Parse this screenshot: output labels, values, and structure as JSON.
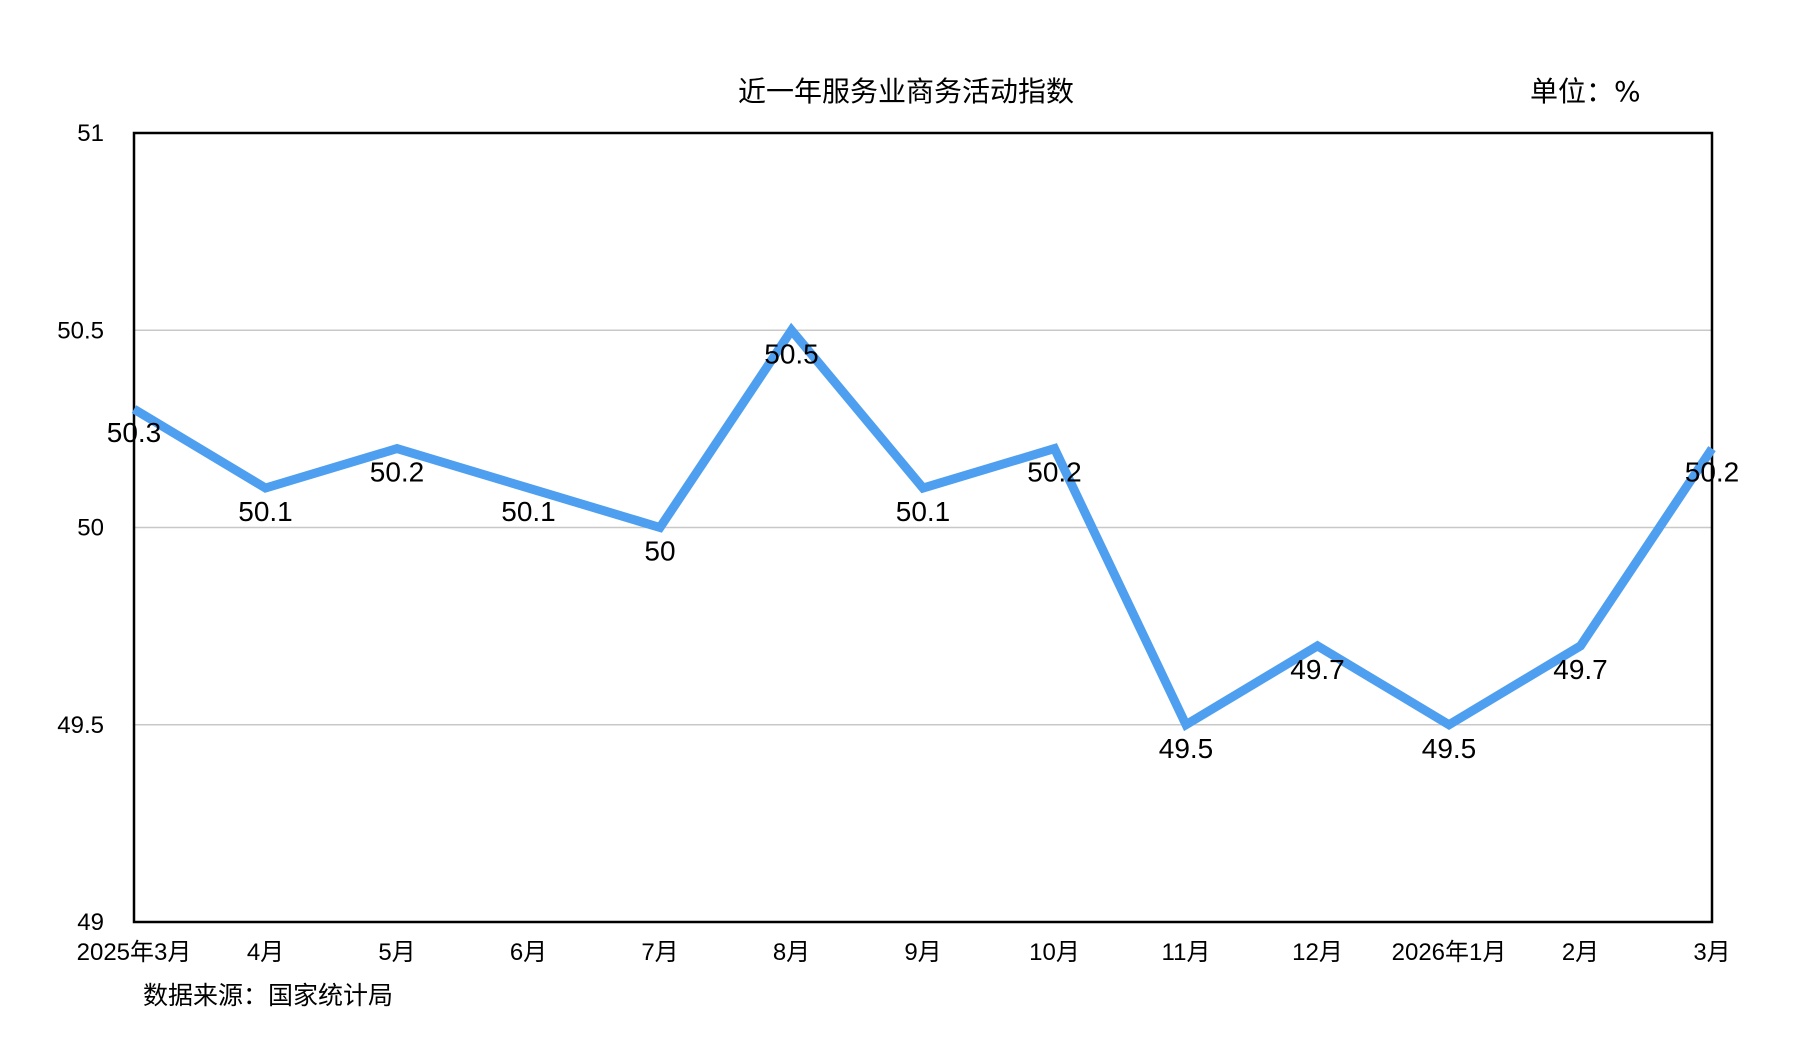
{
  "title": "近一年服务业商务活动指数",
  "unit": "单位：%",
  "source": "数据来源：国家统计局",
  "colors": {
    "line": "#4f9ff0",
    "grid": "#c8c8c8",
    "axis": "#000000"
  },
  "chart_data": {
    "type": "line",
    "title": "近一年服务业商务活动指数",
    "categories": [
      "2025年3月",
      "4月",
      "5月",
      "6月",
      "7月",
      "8月",
      "9月",
      "10月",
      "11月",
      "12月",
      "2026年1月",
      "2月",
      "3月"
    ],
    "series": [
      {
        "values": [
          50.3,
          50.1,
          50.2,
          50.1,
          50,
          50.5,
          50.1,
          50.2,
          49.5,
          49.7,
          49.5,
          49.7,
          50.2
        ]
      }
    ],
    "data_labels": [
      "50.3",
      "50.1",
      "50.2",
      "50.1",
      "50",
      "50.5",
      "50.1",
      "50.2",
      "49.5",
      "49.7",
      "49.5",
      "49.7",
      "50.2"
    ],
    "ylim": [
      49,
      51
    ],
    "yticks": [
      "49",
      "49.5",
      "50",
      "50.5",
      "51"
    ],
    "grid": true,
    "legend": "none"
  }
}
